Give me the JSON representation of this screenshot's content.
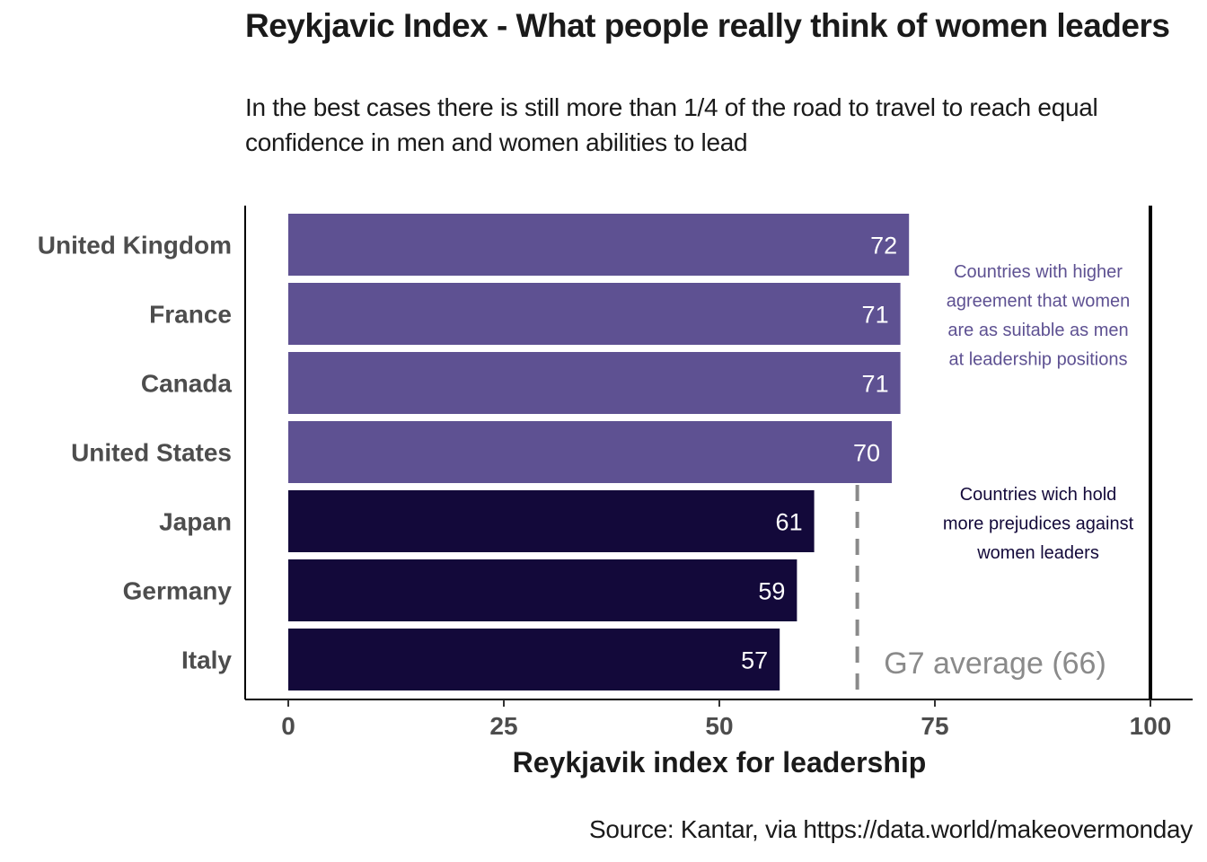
{
  "chart_data": {
    "type": "bar",
    "orientation": "horizontal",
    "title": "Reykjavic Index - What people really think of women leaders",
    "subtitle": "In the best cases there is still more than 1/4 of the road to travel to reach equal confidence in men and women abilities to lead",
    "caption": "Source: Kantar, via  https://data.world/makeovermonday",
    "xlabel": "Reykjavik index for leadership",
    "ylabel": "",
    "xlim": [
      0,
      100
    ],
    "xticks": [
      "0",
      "25",
      "50",
      "75",
      "100"
    ],
    "categories": [
      "United Kingdom",
      "France",
      "Canada",
      "United States",
      "Japan",
      "Germany",
      "Italy"
    ],
    "values": [
      72,
      71,
      71,
      70,
      61,
      59,
      57
    ],
    "colors": [
      "#5e5192",
      "#5e5192",
      "#5e5192",
      "#5e5192",
      "#13093a",
      "#13093a",
      "#13093a"
    ],
    "reference_line": {
      "value": 66,
      "label": "G7 average (66)",
      "style": "dashed",
      "color": "#8a8a8a"
    },
    "target_line": {
      "value": 100,
      "style": "solid",
      "color": "#000000"
    },
    "annotations": [
      {
        "lines": [
          "Countries with higher",
          "agreement that women",
          "are as suitable as men",
          "at leadership positions"
        ],
        "color": "#5e5192"
      },
      {
        "lines": [
          "Countries wich hold",
          "more prejudices against",
          "women leaders"
        ],
        "color": "#13093a"
      }
    ],
    "grid": false,
    "legend": "none"
  }
}
